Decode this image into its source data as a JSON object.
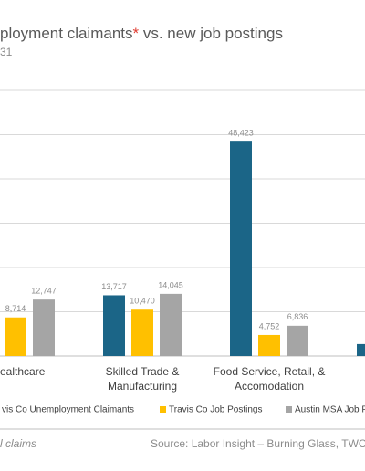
{
  "chart_data": {
    "type": "bar",
    "title": [
      "ployment claimants",
      "*",
      " vs. new job postings"
    ],
    "title_highlight_color": "#e03c31",
    "subtitle": "31",
    "categories": [
      [
        "ealthcare"
      ],
      [
        "Skilled Trade &",
        "Manufacturing"
      ],
      [
        "Food Service, Retail, &",
        "Accomodation"
      ],
      null
    ],
    "series": [
      {
        "name": "vis Co Unemployment Claimants",
        "color": "#1b6587",
        "values": [
          null,
          13717,
          48423,
          2700
        ],
        "value_labels": [
          null,
          "13,717",
          "48,423",
          null
        ]
      },
      {
        "name": "Travis Co Job Postings",
        "color": "#ffc000",
        "values": [
          8714,
          10470,
          4752,
          null
        ],
        "value_labels": [
          "8,714",
          "10,470",
          "4,752",
          null
        ]
      },
      {
        "name": "Austin MSA Job Po",
        "color": "#a5a5a5",
        "values": [
          12747,
          14045,
          6836,
          null
        ],
        "value_labels": [
          "12,747",
          "14,045",
          "6,836",
          null
        ]
      }
    ],
    "ylim": [
      0,
      60000
    ],
    "yticks": [
      0,
      10000,
      20000,
      30000,
      40000,
      50000,
      60000
    ],
    "grid": true,
    "footnote": "l claims",
    "source": "Source: Labor Insight – Burning Glass, TWC,"
  }
}
